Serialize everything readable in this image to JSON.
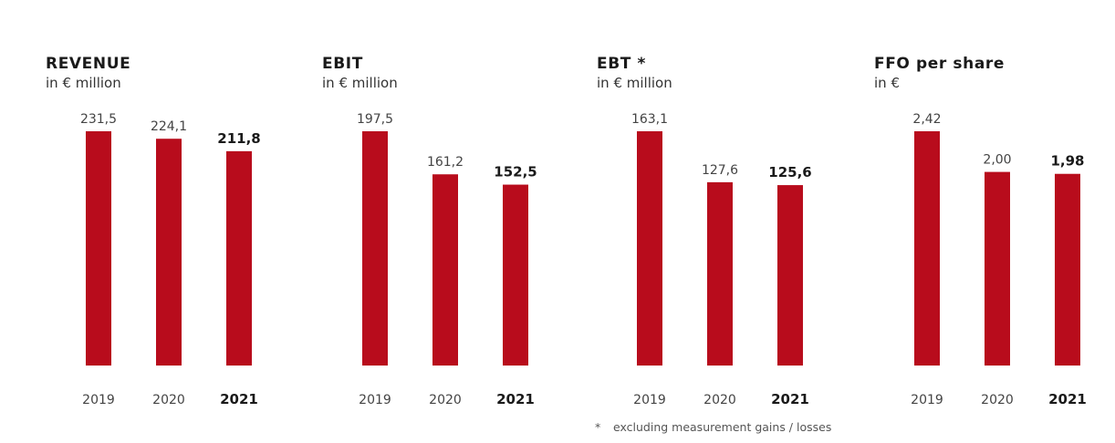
{
  "colors": {
    "bar": "#b80c1c",
    "text": "#222222",
    "muted": "#444444"
  },
  "chart_data": [
    {
      "type": "bar",
      "title": "REVENUE",
      "subtitle": "in € million",
      "categories": [
        "2019",
        "2020",
        "2021"
      ],
      "values": [
        231.5,
        224.1,
        211.8
      ],
      "value_labels": [
        "231,5",
        "224,1",
        "211,8"
      ],
      "highlight_index": 2
    },
    {
      "type": "bar",
      "title": "EBIT",
      "subtitle": "in € million",
      "categories": [
        "2019",
        "2020",
        "2021"
      ],
      "values": [
        197.5,
        161.2,
        152.5
      ],
      "value_labels": [
        "197,5",
        "161,2",
        "152,5"
      ],
      "highlight_index": 2
    },
    {
      "type": "bar",
      "title": "EBT *",
      "subtitle": "in € million",
      "categories": [
        "2019",
        "2020",
        "2021"
      ],
      "values": [
        163.1,
        127.6,
        125.6
      ],
      "value_labels": [
        "163,1",
        "127,6",
        "125,6"
      ],
      "highlight_index": 2
    },
    {
      "type": "bar",
      "title": "FFO per share",
      "subtitle": "in €",
      "categories": [
        "2019",
        "2020",
        "2021"
      ],
      "values": [
        2.42,
        2.0,
        1.98
      ],
      "value_labels": [
        "2,42",
        "2,00",
        "1,98"
      ],
      "highlight_index": 2
    }
  ],
  "footnote": {
    "marker": "*",
    "text": "excluding measurement gains / losses"
  }
}
